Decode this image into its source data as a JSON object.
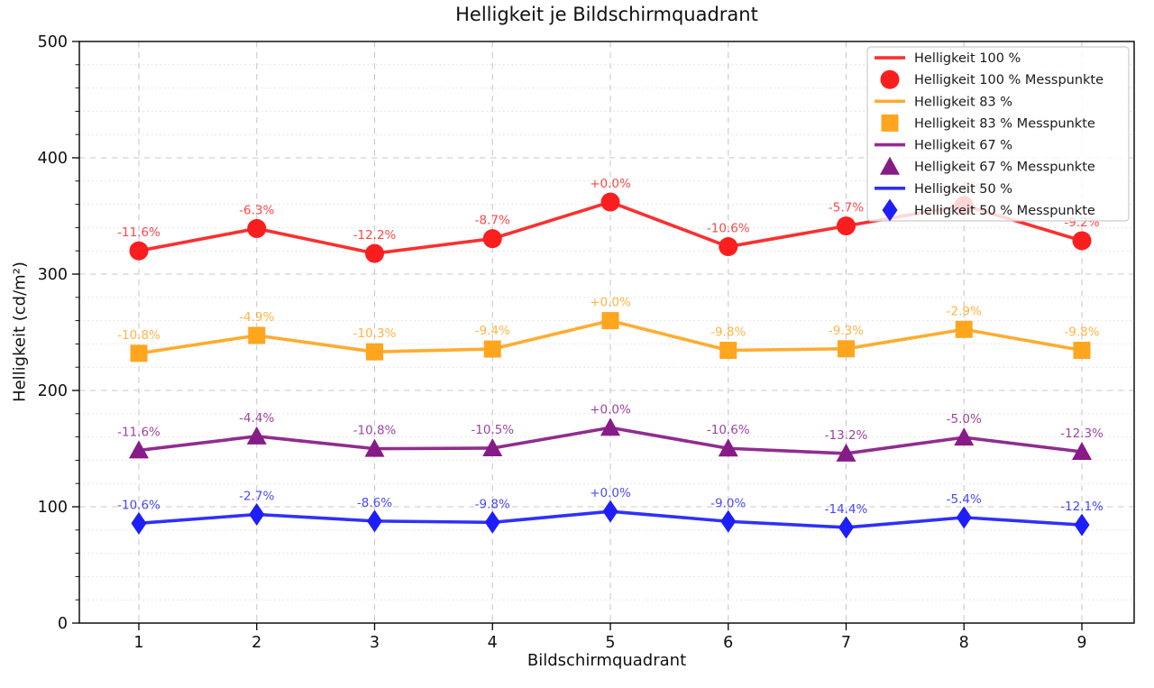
{
  "chart_data": {
    "type": "line",
    "title": "Helligkeit je Bildschirmquadrant",
    "xlabel": "Bildschirmquadrant",
    "ylabel": "Helligkeit (cd/m²)",
    "categories": [
      1,
      2,
      3,
      4,
      5,
      6,
      7,
      8,
      9
    ],
    "ylim": [
      0,
      500
    ],
    "yticks": [
      0,
      100,
      200,
      300,
      400,
      500
    ],
    "y_minor_step": 20,
    "grid": true,
    "legend_position": "upper right",
    "series": [
      {
        "name": "Helligkeit 100 %",
        "messpunkte_name": "Helligkeit 100 % Messpunkte",
        "color": "#fa1e1e",
        "marker": "circle",
        "values": [
          320.0,
          339.2,
          317.8,
          330.5,
          362.0,
          323.6,
          341.4,
          359.1,
          328.7
        ],
        "labels": [
          "-11.6%",
          "-6.3%",
          "-12.2%",
          "-8.7%",
          "+0.0%",
          "-10.6%",
          "-5.7%",
          "-0.8%",
          "-9.2%"
        ]
      },
      {
        "name": "Helligkeit 83 %",
        "messpunkte_name": "Helligkeit 83 % Messpunkte",
        "color": "#ffa51e",
        "marker": "square",
        "values": [
          231.9,
          247.3,
          233.2,
          235.6,
          260.0,
          234.5,
          235.8,
          252.5,
          234.5
        ],
        "labels": [
          "-10.8%",
          "-4.9%",
          "-10.3%",
          "-9.4%",
          "+0.0%",
          "-9.8%",
          "-9.3%",
          "-2.9%",
          "-9.8%"
        ]
      },
      {
        "name": "Helligkeit 67 %",
        "messpunkte_name": "Helligkeit 67 % Messpunkte",
        "color": "#871b87",
        "marker": "triangle",
        "values": [
          148.5,
          160.6,
          149.9,
          150.4,
          168.0,
          150.2,
          145.8,
          159.6,
          147.3
        ],
        "labels": [
          "-11.6%",
          "-4.4%",
          "-10.8%",
          "-10.5%",
          "+0.0%",
          "-10.6%",
          "-13.2%",
          "-5.0%",
          "-12.3%"
        ]
      },
      {
        "name": "Helligkeit 50 %",
        "messpunkte_name": "Helligkeit 50 % Messpunkte",
        "color": "#1e1efa",
        "marker": "diamond",
        "values": [
          85.8,
          93.4,
          87.7,
          86.6,
          96.0,
          87.4,
          82.2,
          90.8,
          84.4
        ],
        "labels": [
          "-10.6%",
          "-2.7%",
          "-8.6%",
          "-9.8%",
          "+0.0%",
          "-9.0%",
          "-14.4%",
          "-5.4%",
          "-12.1%"
        ]
      }
    ]
  }
}
